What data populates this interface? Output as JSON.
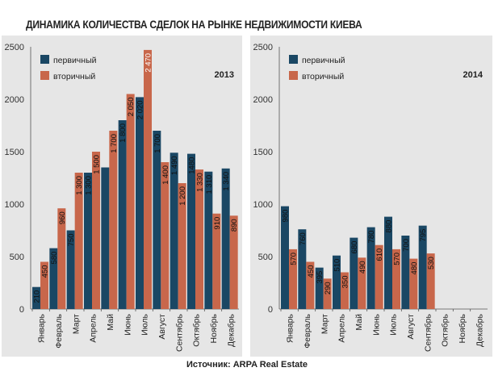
{
  "title": "ДИНАМИКА КОЛИЧЕСТВА СДЕЛОК НА РЫНКЕ НЕДВИЖИМОСТИ КИЕВА",
  "source": "Источник: ARPA Real Estate",
  "colors": {
    "primary": "#1a4764",
    "secondary": "#c8674b",
    "panel_bg": "#e6e6e6"
  },
  "chart_data": [
    {
      "type": "bar",
      "year_label": "2013",
      "categories": [
        "Январь",
        "Февраль",
        "Март",
        "Апрель",
        "Май",
        "Июнь",
        "Июль",
        "Август",
        "Сентябрь",
        "Октябрь",
        "Ноябрь",
        "Декабрь"
      ],
      "series": [
        {
          "name": "первичный",
          "values": [
            210,
            580,
            750,
            1300,
            1350,
            1800,
            2020,
            1700,
            1490,
            1480,
            1310,
            1340
          ],
          "labels": [
            "210",
            "580",
            "750",
            "1 300",
            "",
            "1 800",
            "2 020",
            "1 700",
            "1 490",
            "1480",
            "1 310",
            "1 340"
          ]
        },
        {
          "name": "вторичный",
          "values": [
            450,
            960,
            1300,
            1500,
            1700,
            2050,
            2470,
            1400,
            1200,
            1330,
            910,
            890
          ],
          "labels": [
            "450",
            "960",
            "1 300",
            "1 500",
            "1 700",
            "2 050",
            "2 470",
            "1 400",
            "1 200",
            "1 330",
            "910",
            "890"
          ]
        }
      ],
      "yticks": [
        "0",
        "500",
        "1000",
        "1500",
        "2000",
        "2500"
      ],
      "ylim": [
        0,
        2500
      ]
    },
    {
      "type": "bar",
      "year_label": "2014",
      "categories": [
        "Январь",
        "Февраль",
        "Март",
        "Апрель",
        "Май",
        "Июнь",
        "Июль",
        "Август",
        "Сентябрь",
        "Октябрь",
        "Ноябрь",
        "Декабрь"
      ],
      "series": [
        {
          "name": "первичный",
          "values": [
            980,
            760,
            395,
            510,
            680,
            780,
            880,
            700,
            795,
            null,
            null,
            null
          ],
          "labels": [
            "980",
            "760",
            "395",
            "510",
            "680",
            "780",
            "880",
            "700",
            "795",
            "",
            "",
            ""
          ]
        },
        {
          "name": "вторичный",
          "values": [
            570,
            450,
            290,
            350,
            490,
            610,
            570,
            480,
            530,
            null,
            null,
            null
          ],
          "labels": [
            "570",
            "450",
            "290",
            "350",
            "490",
            "610",
            "570",
            "480",
            "530",
            "",
            "",
            ""
          ]
        }
      ],
      "yticks": [
        "0",
        "500",
        "1000",
        "1500",
        "2000",
        "2500"
      ],
      "ylim": [
        0,
        2500
      ]
    }
  ]
}
